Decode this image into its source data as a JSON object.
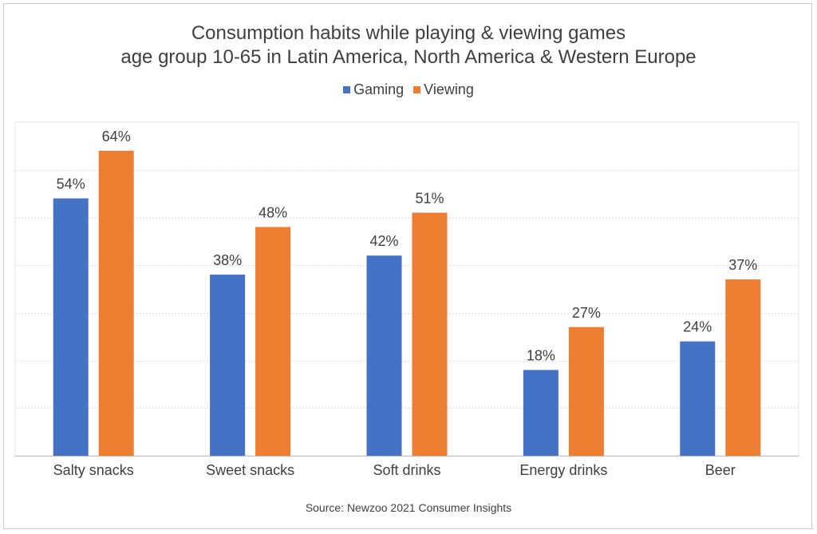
{
  "chart_data": {
    "type": "bar",
    "title": "Consumption habits while playing & viewing games",
    "subtitle": "age group 10-65 in Latin America, North America & Western Europe",
    "categories": [
      "Salty snacks",
      "Sweet snacks",
      "Soft drinks",
      "Energy drinks",
      "Beer"
    ],
    "series": [
      {
        "name": "Gaming",
        "values": [
          54,
          38,
          42,
          18,
          24
        ],
        "color": "#4472c4"
      },
      {
        "name": "Viewing",
        "values": [
          64,
          48,
          51,
          27,
          37
        ],
        "color": "#ed7d31"
      }
    ],
    "value_suffix": "%",
    "ylim": [
      0,
      70
    ],
    "grid": true,
    "legend_position": "top-center",
    "source": "Source: Newzoo 2021 Consumer Insights"
  }
}
